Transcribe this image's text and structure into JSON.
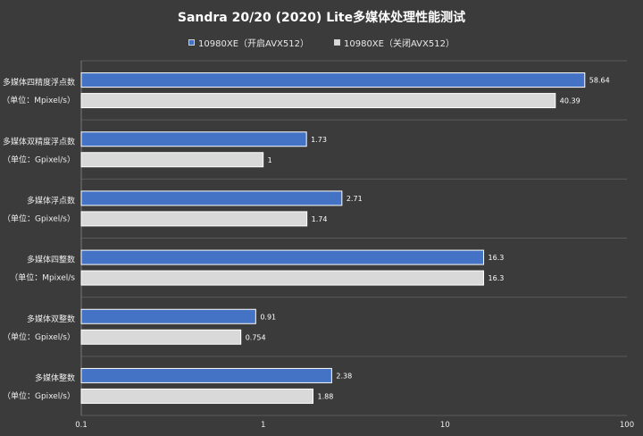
{
  "chart_data": {
    "type": "bar",
    "orientation": "horizontal",
    "title": "Sandra 20/20 (2020) Lite多媒体处理性能测试",
    "x_scale": "log",
    "xlim": [
      0.1,
      100
    ],
    "ticks": [
      "0.1",
      "1",
      "10",
      "100"
    ],
    "legend_position": "top",
    "categories": [
      {
        "line1": "多媒体四精度浮点数",
        "line2": "（单位：Mpixel/s）"
      },
      {
        "line1": "多媒体双精度浮点数",
        "line2": "（单位：Gpixel/s）"
      },
      {
        "line1": "多媒体浮点数",
        "line2": "（单位：Gpixel/s）"
      },
      {
        "line1": "多媒体四整数",
        "line2": "（单位：Mpixel/s"
      },
      {
        "line1": "多媒体双整数",
        "line2": "（单位：Gpixel/s）"
      },
      {
        "line1": "多媒体整数",
        "line2": "（单位：Gpixel/s）"
      }
    ],
    "series": [
      {
        "name": "10980XE（开启AVX512）",
        "color": "#4472c4",
        "values": [
          58.64,
          1.73,
          2.71,
          16.3,
          0.91,
          2.38
        ],
        "labels": [
          "58.64",
          "1.73",
          "2.71",
          "16.3",
          "0.91",
          "2.38"
        ]
      },
      {
        "name": "10980XE（关闭AVX512）",
        "color": "#d9d9d9",
        "values": [
          40.39,
          1,
          1.74,
          16.3,
          0.754,
          1.88
        ],
        "labels": [
          "40.39",
          "1",
          "1.74",
          "16.3",
          "0.754",
          "1.88"
        ]
      }
    ],
    "grid": true
  }
}
